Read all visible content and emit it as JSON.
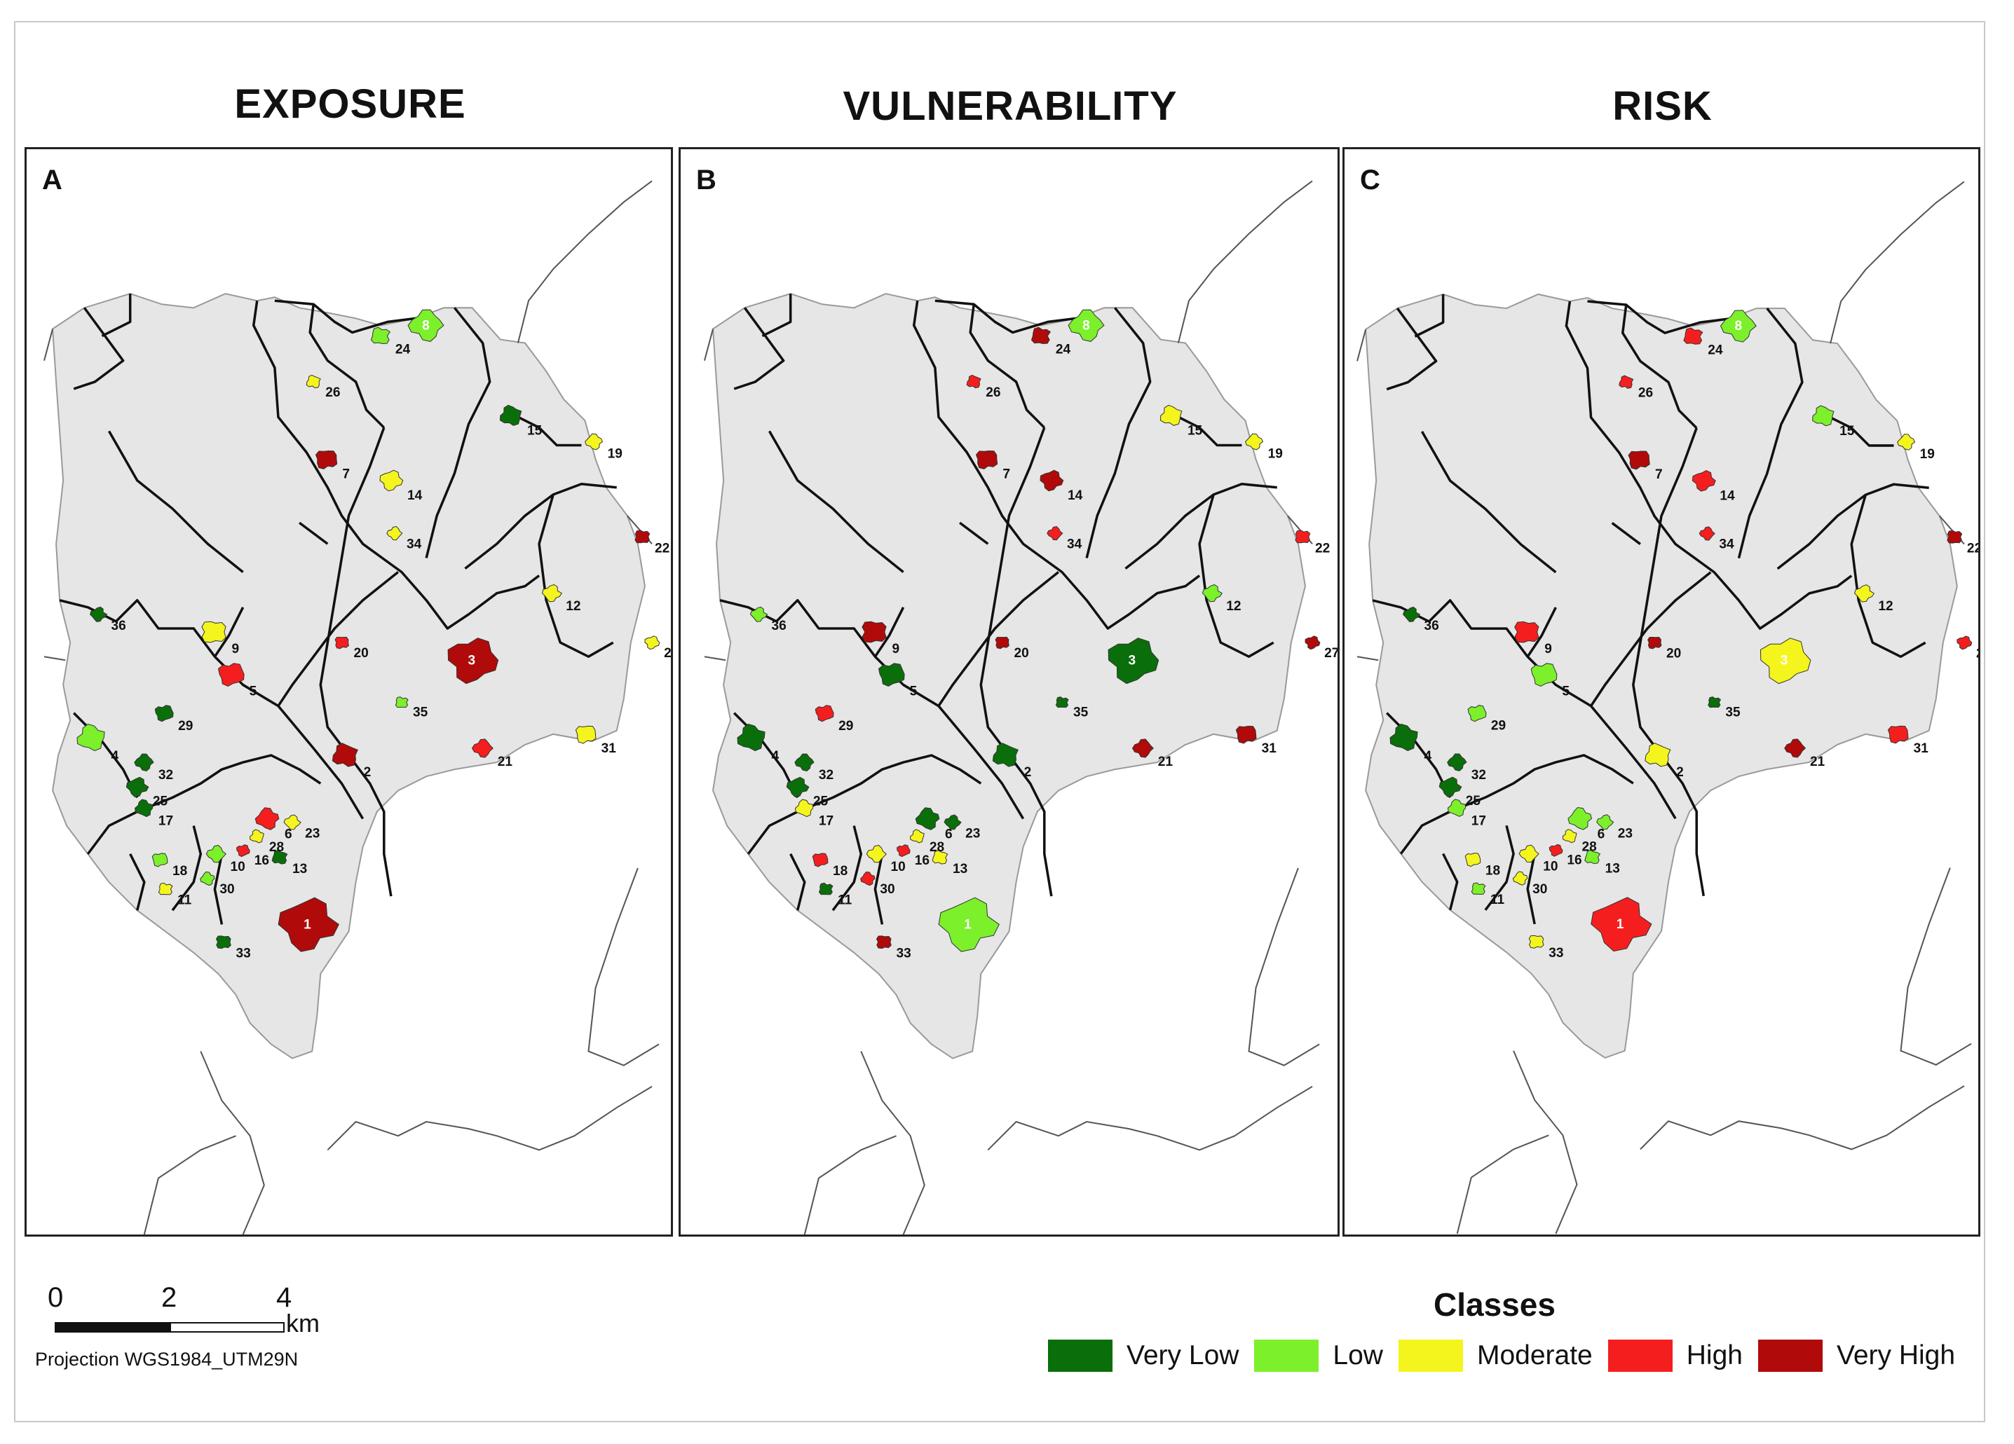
{
  "panels": [
    {
      "title": "EXPOSURE",
      "letter": "A",
      "classes": {
        "1": "very_high",
        "2": "very_high",
        "3": "very_high",
        "4": "low",
        "5": "high",
        "6": "high",
        "7": "very_high",
        "8": "low",
        "9": "moderate",
        "10": "low",
        "11": "moderate",
        "12": "moderate",
        "13": "very_low",
        "14": "moderate",
        "15": "very_low",
        "16": "high",
        "17": "very_low",
        "18": "low",
        "19": "moderate",
        "20": "high",
        "21": "high",
        "22": "very_high",
        "23": "moderate",
        "24": "low",
        "25": "very_low",
        "26": "moderate",
        "27": "moderate",
        "28": "moderate",
        "29": "very_low",
        "30": "low",
        "31": "moderate",
        "32": "very_low",
        "33": "very_low",
        "34": "moderate",
        "35": "low",
        "36": "very_low"
      }
    },
    {
      "title": "VULNERABILITY",
      "letter": "B",
      "classes": {
        "1": "low",
        "2": "very_low",
        "3": "very_low",
        "4": "very_low",
        "5": "very_low",
        "6": "very_low",
        "7": "very_high",
        "8": "low",
        "9": "very_high",
        "10": "moderate",
        "11": "very_low",
        "12": "low",
        "13": "moderate",
        "14": "very_high",
        "15": "moderate",
        "16": "high",
        "17": "moderate",
        "18": "high",
        "19": "moderate",
        "20": "very_high",
        "21": "very_high",
        "22": "high",
        "23": "very_low",
        "24": "very_high",
        "25": "very_low",
        "26": "high",
        "27": "very_high",
        "28": "moderate",
        "29": "high",
        "30": "high",
        "31": "very_high",
        "32": "very_low",
        "33": "very_high",
        "34": "high",
        "35": "very_low",
        "36": "low"
      }
    },
    {
      "title": "RISK",
      "letter": "C",
      "classes": {
        "1": "high",
        "2": "moderate",
        "3": "moderate",
        "4": "very_low",
        "5": "low",
        "6": "low",
        "7": "very_high",
        "8": "low",
        "9": "high",
        "10": "moderate",
        "11": "low",
        "12": "moderate",
        "13": "low",
        "14": "high",
        "15": "low",
        "16": "high",
        "17": "low",
        "18": "moderate",
        "19": "moderate",
        "20": "very_high",
        "21": "very_high",
        "22": "very_high",
        "23": "low",
        "24": "high",
        "25": "very_low",
        "26": "high",
        "27": "high",
        "28": "moderate",
        "29": "low",
        "30": "moderate",
        "31": "high",
        "32": "very_low",
        "33": "moderate",
        "34": "high",
        "35": "very_low",
        "36": "very_low"
      }
    }
  ],
  "scale": {
    "ticks": [
      "0",
      "2",
      "4"
    ],
    "unit": "km",
    "projection": "Projection WGS1984_UTM29N"
  },
  "legend": {
    "title": "Classes",
    "items": [
      {
        "key": "very_low",
        "label": "Very Low",
        "color": "#0a6e0a"
      },
      {
        "key": "low",
        "label": "Low",
        "color": "#7cf02a"
      },
      {
        "key": "moderate",
        "label": "Moderate",
        "color": "#f5f51e"
      },
      {
        "key": "high",
        "label": "High",
        "color": "#f51e1e"
      },
      {
        "key": "very_high",
        "label": "Very High",
        "color": "#b00a0a"
      }
    ]
  },
  "map_colors": {
    "region_fill": "#e6e6e6",
    "river": "#111111",
    "boundary": "#555555"
  }
}
